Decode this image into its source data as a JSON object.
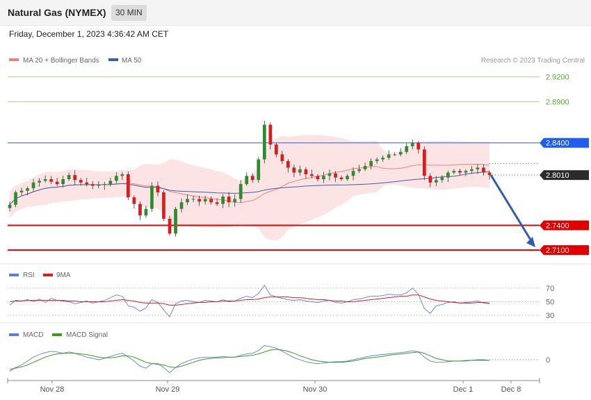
{
  "header": {
    "title": "Natural Gas (NYMEX)",
    "timeframe": "30 MIN",
    "datetime": "Friday, December 1, 2023 4:36:42 AM CET"
  },
  "colors": {
    "ma20": "#f08080",
    "ma50": "#3a5fa8",
    "bull": "#2e8b2e",
    "bear": "#d91c1c",
    "resist_blue": "#1f5ef0",
    "level_red": "#e00000",
    "green_level": "#5aaa2a",
    "arrow": "#2f5ea8",
    "rsi": "#5b7fd6",
    "rsi_ma": "#d92020",
    "macd": "#5b7fd6",
    "macd_signal": "#3a9a1a"
  },
  "chart_data": [
    {
      "type": "candlestick",
      "legend": [
        {
          "name": "MA 20 + Bollinger Bands",
          "color": "#f08080"
        },
        {
          "name": "MA 50",
          "color": "#3a5fa8"
        }
      ],
      "watermark": "Research © 2023 Trading Central",
      "price_levels": [
        {
          "value": "2.9200",
          "kind": "green"
        },
        {
          "value": "2.8900",
          "kind": "green"
        },
        {
          "value": "2.8400",
          "kind": "blue"
        },
        {
          "value": "2.8010",
          "kind": "current"
        },
        {
          "value": "2.7400",
          "kind": "red"
        },
        {
          "value": "2.7100",
          "kind": "red"
        }
      ],
      "x_ticks": [
        "Nov 28",
        "Nov 29",
        "Nov 30",
        "Dec 1",
        "Dec 8"
      ],
      "close_series": [
        2.765,
        2.78,
        2.782,
        2.785,
        2.792,
        2.794,
        2.796,
        2.793,
        2.79,
        2.796,
        2.801,
        2.795,
        2.792,
        2.79,
        2.788,
        2.789,
        2.79,
        2.794,
        2.8,
        2.802,
        2.774,
        2.766,
        2.752,
        2.76,
        2.788,
        2.78,
        2.748,
        2.73,
        2.76,
        2.768,
        2.772,
        2.772,
        2.769,
        2.772,
        2.768,
        2.766,
        2.775,
        2.768,
        2.772,
        2.79,
        2.8,
        2.795,
        2.82,
        2.862,
        2.838,
        2.826,
        2.818,
        2.81,
        2.804,
        2.808,
        2.802,
        2.8,
        2.796,
        2.8,
        2.803,
        2.798,
        2.796,
        2.8,
        2.806,
        2.808,
        2.812,
        2.818,
        2.82,
        2.822,
        2.826,
        2.826,
        2.829,
        2.836,
        2.84,
        2.832,
        2.8,
        2.792,
        2.795,
        2.798,
        2.804,
        2.806,
        2.804,
        2.806,
        2.808,
        2.81,
        2.804,
        2.801
      ],
      "y_range": [
        2.695,
        2.929
      ]
    },
    {
      "type": "line",
      "legend": [
        {
          "name": "RSI",
          "color": "#5b7fd6"
        },
        {
          "name": "9MA",
          "color": "#d92020"
        }
      ],
      "y_ticks": [
        "70",
        "50",
        "30"
      ],
      "y_range": [
        22,
        80
      ],
      "rsi": [
        45,
        52,
        51,
        53,
        50,
        54,
        49,
        55,
        52,
        51,
        50,
        47,
        49,
        51,
        48,
        50,
        52,
        56,
        60,
        58,
        44,
        42,
        36,
        41,
        53,
        49,
        38,
        28,
        47,
        51,
        52,
        50,
        49,
        52,
        51,
        50,
        53,
        50,
        51,
        55,
        58,
        56,
        62,
        74,
        60,
        57,
        55,
        53,
        52,
        53,
        51,
        50,
        49,
        51,
        52,
        49,
        48,
        50,
        53,
        54,
        56,
        58,
        58,
        59,
        61,
        60,
        60,
        63,
        70,
        61,
        40,
        33,
        44,
        46,
        49,
        50,
        48,
        49,
        50,
        51,
        48,
        47
      ],
      "rsi_ma": [
        50,
        51,
        51,
        52,
        52,
        52,
        52,
        52,
        52,
        52,
        51,
        51,
        50,
        50,
        50,
        50,
        50,
        51,
        52,
        53,
        52,
        51,
        49,
        48,
        48,
        48,
        47,
        45,
        45,
        46,
        47,
        48,
        49,
        49,
        50,
        50,
        51,
        51,
        51,
        52,
        53,
        53,
        54,
        56,
        57,
        57,
        57,
        57,
        56,
        56,
        55,
        54,
        53,
        53,
        52,
        51,
        51,
        50,
        50,
        51,
        52,
        53,
        54,
        55,
        56,
        57,
        58,
        58,
        60,
        60,
        57,
        54,
        52,
        51,
        50,
        49,
        48,
        48,
        48,
        49,
        49,
        48
      ]
    },
    {
      "type": "line",
      "legend": [
        {
          "name": "MACD",
          "color": "#5b7fd6"
        },
        {
          "name": "MACD Signal",
          "color": "#3a9a1a"
        }
      ],
      "y_ticks": [
        "0"
      ],
      "y_range": [
        -0.03,
        0.03
      ],
      "macd": [
        -0.018,
        -0.012,
        -0.008,
        -0.002,
        0.004,
        0.008,
        0.011,
        0.013,
        0.012,
        0.01,
        0.012,
        0.01,
        0.007,
        0.004,
        0.002,
        0.0,
        0.002,
        0.005,
        0.008,
        0.01,
        0.004,
        -0.002,
        -0.01,
        -0.013,
        -0.006,
        -0.006,
        -0.012,
        -0.02,
        -0.012,
        -0.006,
        -0.002,
        0.001,
        0.003,
        0.004,
        0.004,
        0.004,
        0.005,
        0.004,
        0.004,
        0.007,
        0.009,
        0.01,
        0.014,
        0.022,
        0.02,
        0.018,
        0.013,
        0.008,
        0.003,
        0.0,
        -0.003,
        -0.005,
        -0.006,
        -0.005,
        -0.004,
        -0.003,
        -0.003,
        -0.002,
        0.0,
        0.002,
        0.004,
        0.006,
        0.007,
        0.008,
        0.009,
        0.01,
        0.011,
        0.012,
        0.014,
        0.012,
        0.004,
        -0.002,
        -0.004,
        -0.004,
        -0.003,
        -0.002,
        -0.002,
        -0.001,
        -0.001,
        0.0,
        0.0,
        -0.001
      ],
      "macd_signal": [
        -0.015,
        -0.013,
        -0.011,
        -0.008,
        -0.004,
        0.0,
        0.004,
        0.007,
        0.009,
        0.01,
        0.01,
        0.01,
        0.009,
        0.008,
        0.006,
        0.004,
        0.003,
        0.003,
        0.004,
        0.006,
        0.006,
        0.004,
        0.0,
        -0.004,
        -0.006,
        -0.007,
        -0.008,
        -0.011,
        -0.012,
        -0.01,
        -0.007,
        -0.004,
        -0.001,
        0.001,
        0.002,
        0.003,
        0.003,
        0.004,
        0.004,
        0.005,
        0.006,
        0.007,
        0.009,
        0.012,
        0.015,
        0.016,
        0.015,
        0.013,
        0.01,
        0.006,
        0.003,
        0.0,
        -0.002,
        -0.003,
        -0.004,
        -0.004,
        -0.004,
        -0.003,
        -0.002,
        0.0,
        0.002,
        0.003,
        0.004,
        0.005,
        0.007,
        0.008,
        0.009,
        0.01,
        0.011,
        0.012,
        0.01,
        0.006,
        0.002,
        0.0,
        -0.002,
        -0.002,
        -0.002,
        -0.002,
        -0.001,
        -0.001,
        -0.001,
        -0.001
      ]
    }
  ]
}
